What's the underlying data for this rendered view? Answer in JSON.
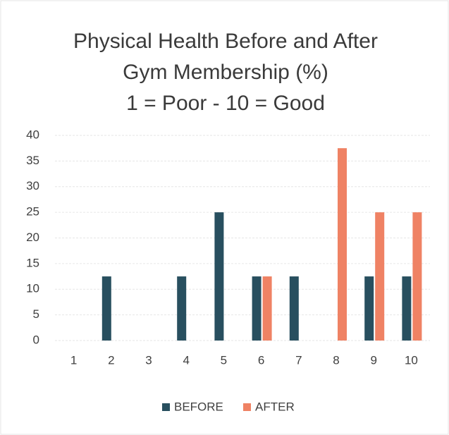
{
  "chart_data": {
    "type": "bar",
    "title": [
      "Physical Health Before and After",
      "Gym Membership (%)",
      "1 = Poor - 10 = Good"
    ],
    "categories": [
      "1",
      "2",
      "3",
      "4",
      "5",
      "6",
      "7",
      "8",
      "9",
      "10"
    ],
    "series": [
      {
        "name": "BEFORE",
        "color": "#284f5f",
        "values": [
          0,
          12.5,
          0,
          12.5,
          25,
          12.5,
          12.5,
          0,
          12.5,
          12.5
        ]
      },
      {
        "name": "AFTER",
        "color": "#ef8264",
        "values": [
          0,
          0,
          0,
          0,
          0,
          12.5,
          0,
          37.5,
          25,
          25
        ]
      }
    ],
    "ylim": [
      0,
      40
    ],
    "yticks": [
      0,
      5,
      10,
      15,
      20,
      25,
      30,
      35,
      40
    ],
    "grid": true,
    "legend": "bottom"
  }
}
